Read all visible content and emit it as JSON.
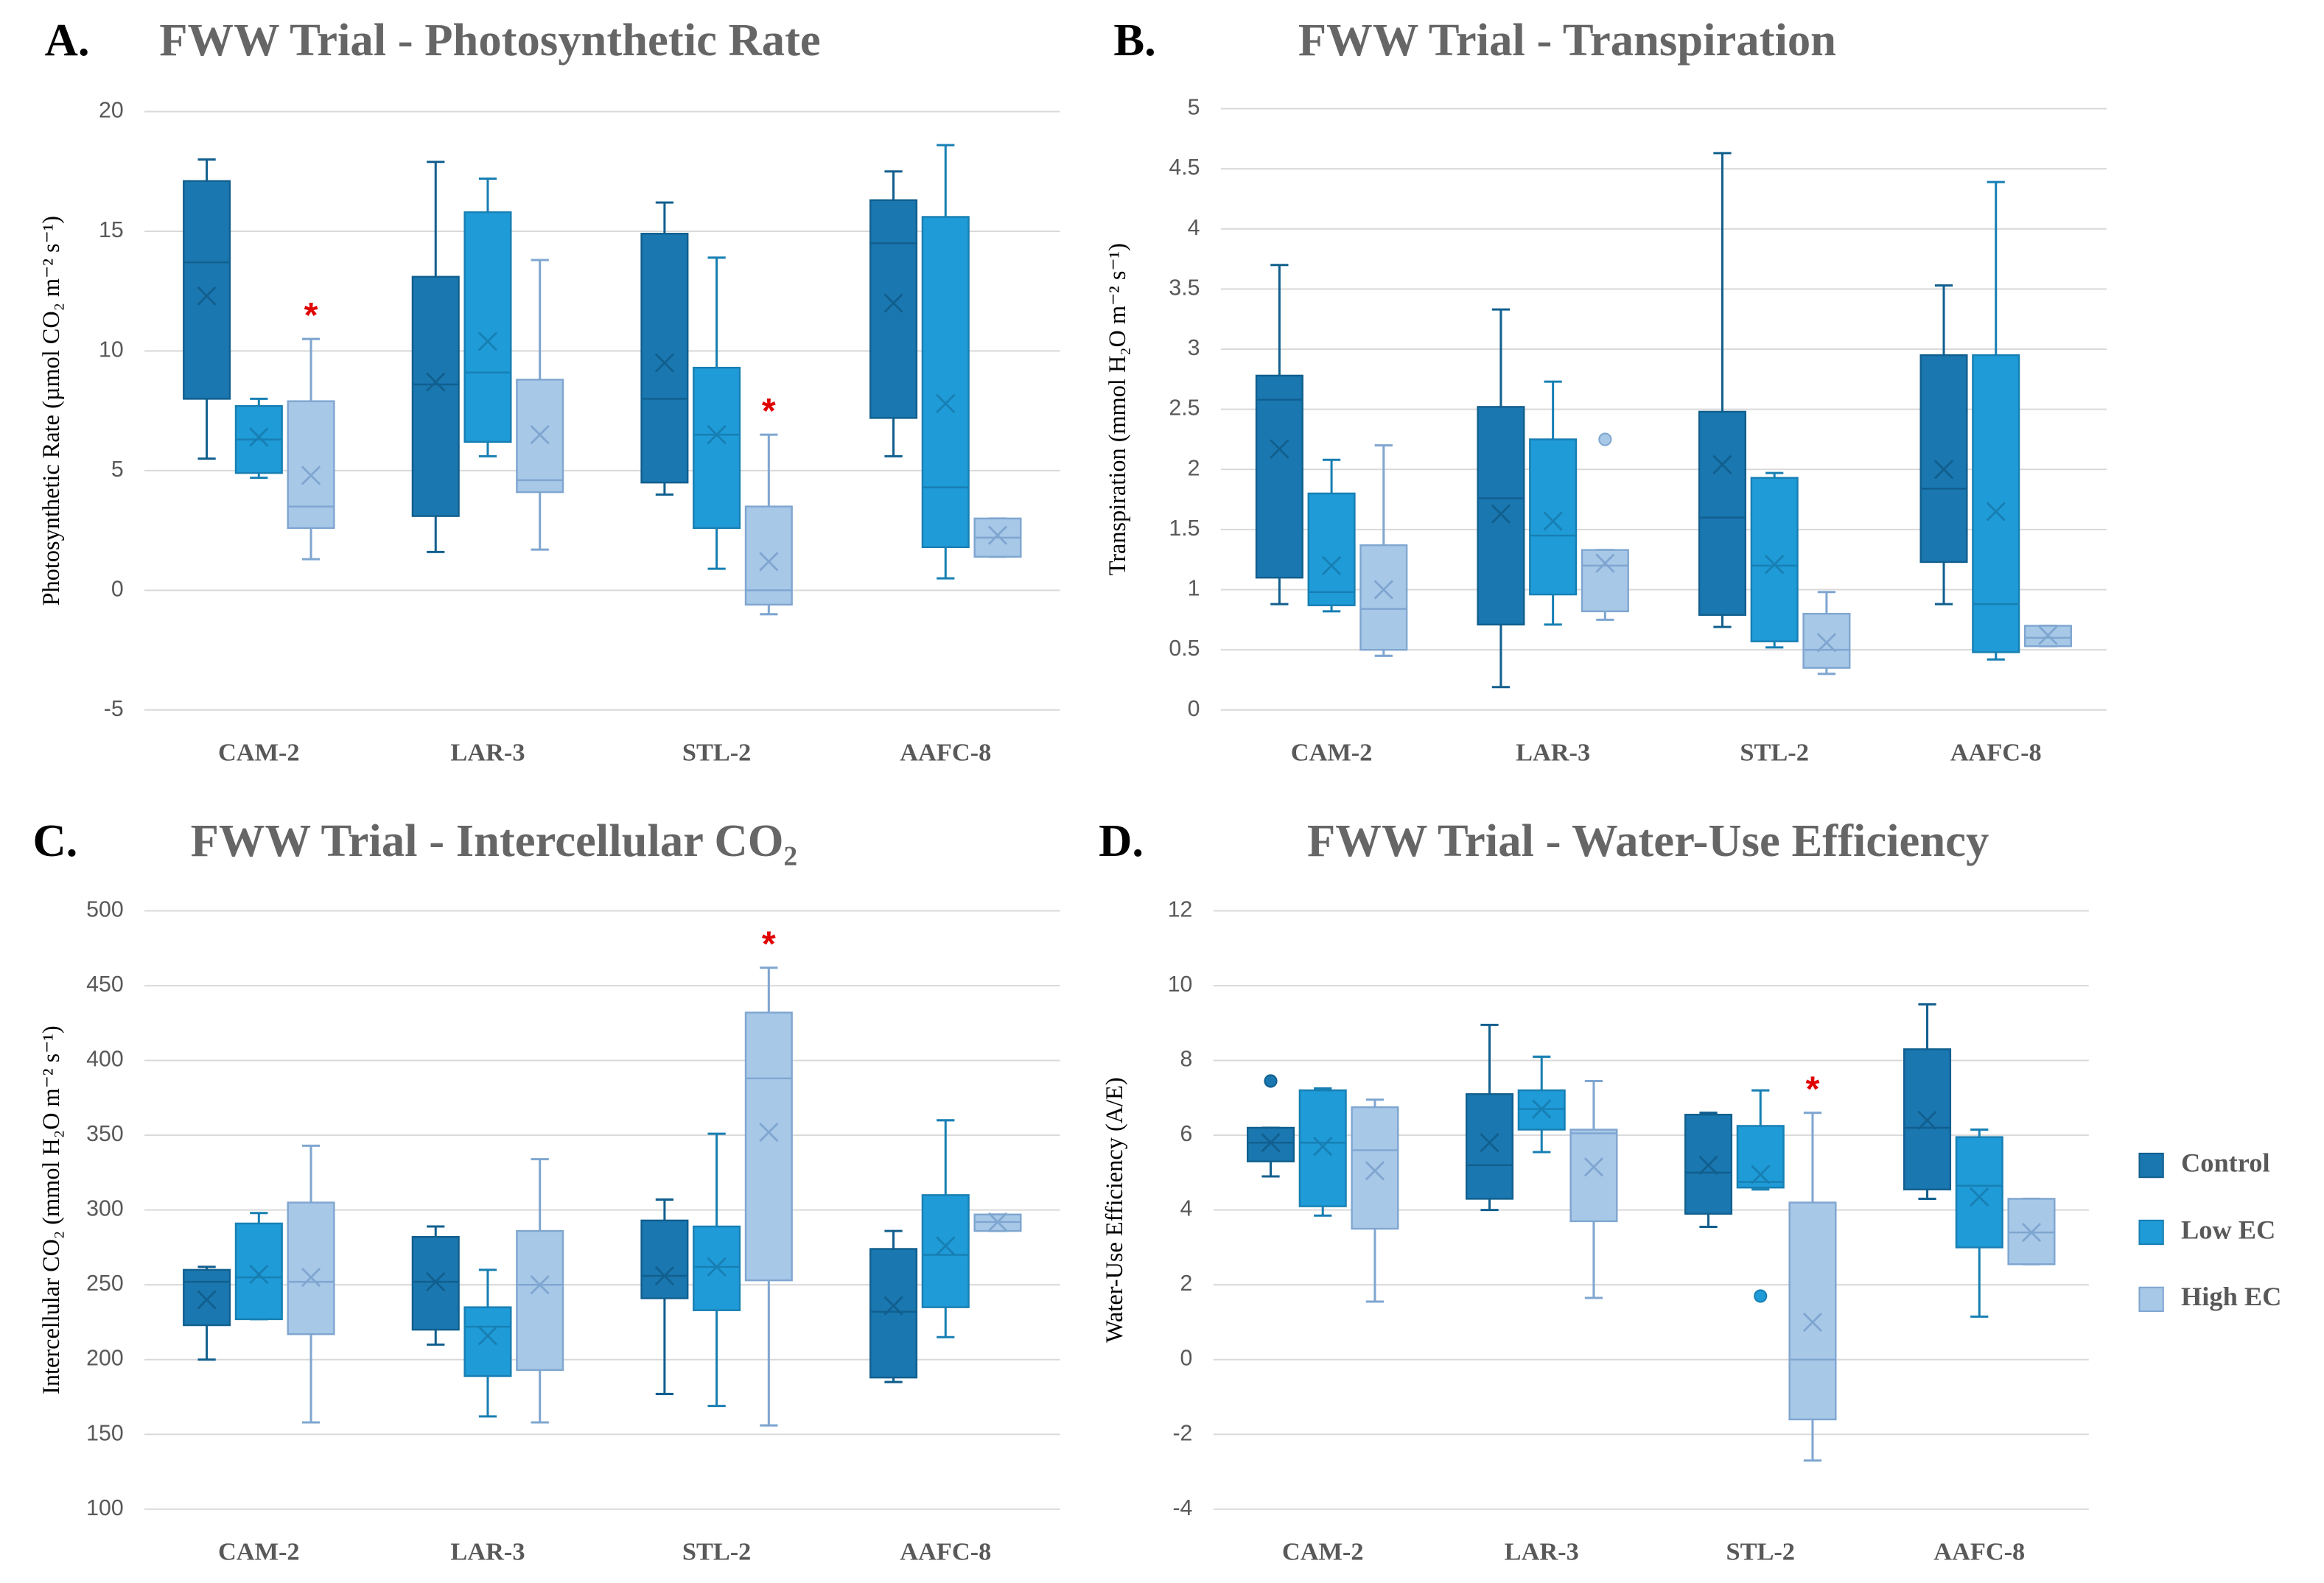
{
  "chart_data": [
    {
      "type": "box",
      "panel": "A.",
      "title": "FWW Trial - Photosynthetic Rate",
      "y_label": "Photosynthetic Rate (µmol CO₂ m⁻² s⁻¹)",
      "categories": [
        "CAM-2",
        "LAR-3",
        "STL-2",
        "AAFC-8"
      ],
      "ylim": [
        -5,
        20
      ],
      "yticks": [
        -5,
        0,
        5,
        10,
        15,
        20
      ],
      "grid": true,
      "series": [
        {
          "name": "Control",
          "color": "#1a77b0",
          "min": [
            5.5,
            1.6,
            4.0,
            5.6
          ],
          "q1": [
            8,
            3.1,
            4.5,
            7.2
          ],
          "median": [
            13.7,
            8.6,
            8.0,
            14.5
          ],
          "q3": [
            17.1,
            13.1,
            14.9,
            16.3
          ],
          "max": [
            18,
            17.9,
            16.2,
            17.5
          ],
          "mean": [
            12.3,
            8.7,
            9.5,
            12.0
          ]
        },
        {
          "name": "Low EC",
          "color": "#1f9bd7",
          "min": [
            4.7,
            5.6,
            0.9,
            0.5
          ],
          "q1": [
            4.9,
            6.2,
            2.6,
            1.8
          ],
          "median": [
            6.3,
            9.1,
            6.5,
            4.3
          ],
          "q3": [
            7.7,
            15.8,
            9.3,
            15.6
          ],
          "max": [
            8.0,
            17.2,
            13.9,
            18.6
          ],
          "mean": [
            6.4,
            10.4,
            6.5,
            7.8
          ]
        },
        {
          "name": "High EC",
          "color": "#a8c8e8",
          "min": [
            1.3,
            1.7,
            -1.0,
            1.4
          ],
          "q1": [
            2.6,
            4.1,
            -0.6,
            1.4
          ],
          "median": [
            3.5,
            4.6,
            0.0,
            2.2
          ],
          "q3": [
            7.9,
            8.8,
            3.5,
            3.0
          ],
          "max": [
            10.5,
            13.8,
            6.5,
            3.0
          ],
          "mean": [
            4.8,
            6.5,
            1.2,
            2.3
          ],
          "annotations": [
            "*",
            null,
            "*",
            null
          ]
        }
      ]
    },
    {
      "type": "box",
      "panel": "B.",
      "title": "FWW Trial - Transpiration",
      "y_label": "Transpiration  (mmol H₂O m⁻² s⁻¹)",
      "categories": [
        "CAM-2",
        "LAR-3",
        "STL-2",
        "AAFC-8"
      ],
      "ylim": [
        0,
        5
      ],
      "yticks": [
        0,
        0.5,
        1,
        1.5,
        2,
        2.5,
        3,
        3.5,
        4,
        4.5,
        5
      ],
      "grid": true,
      "series": [
        {
          "name": "Control",
          "color": "#1a77b0",
          "min": [
            0.88,
            0.19,
            0.69,
            0.88
          ],
          "q1": [
            1.1,
            0.71,
            0.79,
            1.23
          ],
          "median": [
            2.58,
            1.76,
            1.6,
            1.84
          ],
          "q3": [
            2.78,
            2.52,
            2.48,
            2.95
          ],
          "max": [
            3.7,
            3.33,
            4.63,
            3.53
          ],
          "mean": [
            2.17,
            1.63,
            2.04,
            2.0
          ]
        },
        {
          "name": "Low EC",
          "color": "#1f9bd7",
          "min": [
            0.82,
            0.71,
            0.52,
            0.42
          ],
          "q1": [
            0.87,
            0.96,
            0.57,
            0.48
          ],
          "median": [
            0.98,
            1.45,
            1.2,
            0.88
          ],
          "q3": [
            1.8,
            2.25,
            1.93,
            2.95
          ],
          "max": [
            2.08,
            2.73,
            1.97,
            4.39
          ],
          "mean": [
            1.2,
            1.57,
            1.21,
            1.65
          ]
        },
        {
          "name": "High EC",
          "color": "#a8c8e8",
          "min": [
            0.45,
            0.75,
            0.3,
            0.53
          ],
          "q1": [
            0.5,
            0.82,
            0.35,
            0.53
          ],
          "median": [
            0.84,
            1.2,
            0.5,
            0.6
          ],
          "q3": [
            1.37,
            1.33,
            0.8,
            0.7
          ],
          "max": [
            2.2,
            1.33,
            0.98,
            0.7
          ],
          "mean": [
            1.0,
            1.22,
            0.56,
            0.62
          ],
          "outliers": [
            {
              "category": 1,
              "value": 2.25
            }
          ]
        }
      ]
    },
    {
      "type": "box",
      "panel": "C.",
      "title": "FWW Trial - Intercellular CO₂",
      "y_label": "Intercellular CO₂ (mmol H₂O m⁻² s⁻¹)",
      "categories": [
        "CAM-2",
        "LAR-3",
        "STL-2",
        "AAFC-8"
      ],
      "ylim": [
        100,
        500
      ],
      "yticks": [
        100,
        150,
        200,
        250,
        300,
        350,
        400,
        450,
        500
      ],
      "grid": true,
      "series": [
        {
          "name": "Control",
          "color": "#1a77b0",
          "min": [
            200,
            210,
            177,
            185
          ],
          "q1": [
            223,
            220,
            241,
            188
          ],
          "median": [
            252,
            252,
            256,
            232
          ],
          "q3": [
            260,
            282,
            293,
            274
          ],
          "max": [
            262,
            289,
            307,
            286
          ],
          "mean": [
            240,
            252,
            256,
            236
          ]
        },
        {
          "name": "Low EC",
          "color": "#1f9bd7",
          "min": [
            227,
            162,
            169,
            215
          ],
          "q1": [
            227,
            189,
            233,
            235
          ],
          "median": [
            255,
            222,
            262,
            270
          ],
          "q3": [
            291,
            235,
            289,
            310
          ],
          "max": [
            298,
            260,
            351,
            360
          ],
          "mean": [
            257,
            216,
            262,
            276
          ]
        },
        {
          "name": "High EC",
          "color": "#a8c8e8",
          "min": [
            158,
            158,
            156,
            286
          ],
          "q1": [
            217,
            193,
            253,
            286
          ],
          "median": [
            252,
            250,
            388,
            292
          ],
          "q3": [
            305,
            286,
            432,
            297
          ],
          "max": [
            343,
            334,
            462,
            297
          ],
          "mean": [
            255,
            250,
            352,
            292
          ],
          "annotations": [
            null,
            null,
            "*",
            null
          ]
        }
      ]
    },
    {
      "type": "box",
      "panel": "D.",
      "title": "FWW Trial - Water-Use Efficiency",
      "y_label": "Water-Use Efficiency (A/E)",
      "categories": [
        "CAM-2",
        "LAR-3",
        "STL-2",
        "AAFC-8"
      ],
      "ylim": [
        -4,
        12
      ],
      "yticks": [
        -4,
        -2,
        0,
        2,
        4,
        6,
        8,
        10,
        12
      ],
      "grid": true,
      "legend": "right",
      "series": [
        {
          "name": "Control",
          "color": "#1a77b0",
          "min": [
            4.9,
            4.0,
            3.55,
            4.3
          ],
          "q1": [
            5.3,
            4.3,
            3.9,
            4.55
          ],
          "median": [
            5.8,
            5.2,
            5.0,
            6.2
          ],
          "q3": [
            6.2,
            7.1,
            6.55,
            8.3
          ],
          "max": [
            6.2,
            8.95,
            6.6,
            9.5
          ],
          "mean": [
            5.8,
            5.8,
            5.2,
            6.4
          ],
          "outliers": [
            {
              "category": 0,
              "value": 7.45
            }
          ]
        },
        {
          "name": "Low EC",
          "color": "#1f9bd7",
          "min": [
            3.85,
            5.55,
            4.55,
            1.15
          ],
          "q1": [
            4.1,
            6.15,
            4.6,
            3.0
          ],
          "median": [
            5.8,
            6.7,
            4.75,
            4.65
          ],
          "q3": [
            7.2,
            7.2,
            6.25,
            5.95
          ],
          "max": [
            7.25,
            8.1,
            7.2,
            6.15
          ],
          "mean": [
            5.7,
            6.7,
            4.95,
            4.35
          ],
          "outliers": [
            {
              "category": 2,
              "value": 1.7
            }
          ]
        },
        {
          "name": "High EC",
          "color": "#a8c8e8",
          "min": [
            1.55,
            1.65,
            -2.7,
            2.55
          ],
          "q1": [
            3.5,
            3.7,
            -1.6,
            2.55
          ],
          "median": [
            5.6,
            6.05,
            0.0,
            3.4
          ],
          "q3": [
            6.75,
            6.15,
            4.2,
            4.3
          ],
          "max": [
            6.95,
            7.45,
            6.6,
            4.3
          ],
          "mean": [
            5.05,
            5.15,
            1.0,
            3.4
          ],
          "annotations": [
            null,
            null,
            "*",
            null
          ]
        }
      ]
    }
  ]
}
